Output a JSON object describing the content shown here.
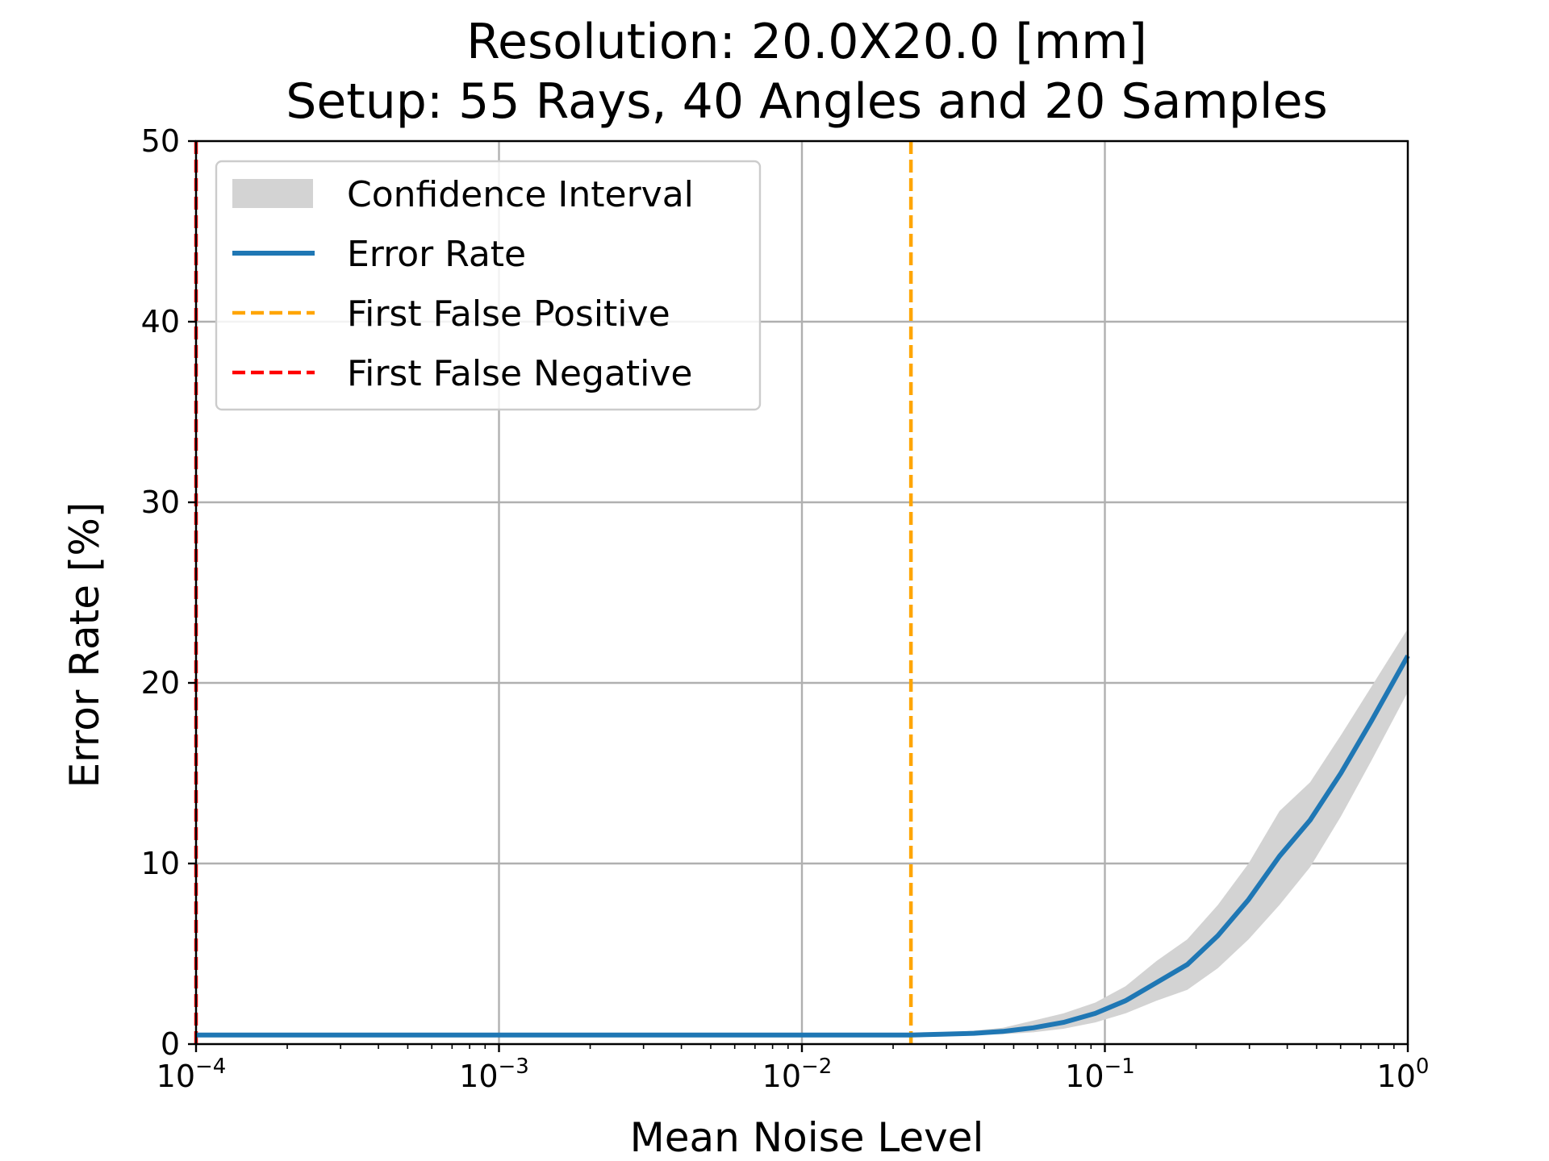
{
  "chart_data": {
    "type": "line",
    "title_lines": [
      "Resolution: 20.0X20.0 [mm]",
      "Setup: 55 Rays, 40 Angles and 20 Samples"
    ],
    "xlabel": "Mean Noise Level",
    "ylabel": "Error Rate [%]",
    "xscale": "log",
    "xlim": [
      0.0001,
      1
    ],
    "ylim": [
      0,
      50
    ],
    "grid": true,
    "legend_position": "top-left",
    "x_ticks": [
      {
        "base": "10",
        "exp": "−4",
        "value": 0.0001
      },
      {
        "base": "10",
        "exp": "−3",
        "value": 0.001
      },
      {
        "base": "10",
        "exp": "−2",
        "value": 0.01
      },
      {
        "base": "10",
        "exp": "−1",
        "value": 0.1
      },
      {
        "base": "10",
        "exp": "0",
        "value": 1
      }
    ],
    "y_ticks": [
      "0",
      "10",
      "20",
      "30",
      "40",
      "50"
    ],
    "legend": [
      {
        "label": "Confidence Interval",
        "kind": "fill",
        "color": "#d3d3d3"
      },
      {
        "label": "Error Rate",
        "kind": "line",
        "color": "#1f77b4"
      },
      {
        "label": "First False Positive",
        "kind": "dashed",
        "color": "#ffa500"
      },
      {
        "label": "First False Negative",
        "kind": "dashed",
        "color": "#ff0000"
      }
    ],
    "series": [
      {
        "name": "Error Rate",
        "color": "#1f77b4",
        "x": [
          0.0001,
          0.0023,
          0.0046,
          0.0093,
          0.0187,
          0.023,
          0.029,
          0.037,
          0.046,
          0.058,
          0.073,
          0.093,
          0.117,
          0.148,
          0.187,
          0.236,
          0.298,
          0.377,
          0.476,
          0.601,
          0.759,
          1.0
        ],
        "y": [
          0.5,
          0.5,
          0.5,
          0.5,
          0.5,
          0.5,
          0.55,
          0.6,
          0.7,
          0.9,
          1.2,
          1.7,
          2.4,
          3.4,
          4.4,
          6.0,
          8.0,
          10.4,
          12.4,
          15.0,
          17.9,
          21.5
        ],
        "y_lower": [
          0.5,
          0.5,
          0.5,
          0.5,
          0.5,
          0.5,
          0.5,
          0.5,
          0.55,
          0.65,
          0.85,
          1.2,
          1.7,
          2.4,
          3.0,
          4.2,
          5.8,
          7.7,
          9.8,
          12.6,
          15.7,
          19.5
        ],
        "y_upper": [
          0.5,
          0.5,
          0.5,
          0.5,
          0.5,
          0.5,
          0.6,
          0.75,
          0.9,
          1.3,
          1.7,
          2.3,
          3.2,
          4.6,
          5.8,
          7.7,
          10.0,
          12.9,
          14.5,
          17.1,
          19.8,
          23.0
        ]
      }
    ],
    "vertical_lines": [
      {
        "name": "First False Positive",
        "x": 0.0229,
        "color": "#ffa500"
      },
      {
        "name": "First False Negative",
        "x": 0.0001,
        "color": "#ff0000"
      }
    ]
  }
}
